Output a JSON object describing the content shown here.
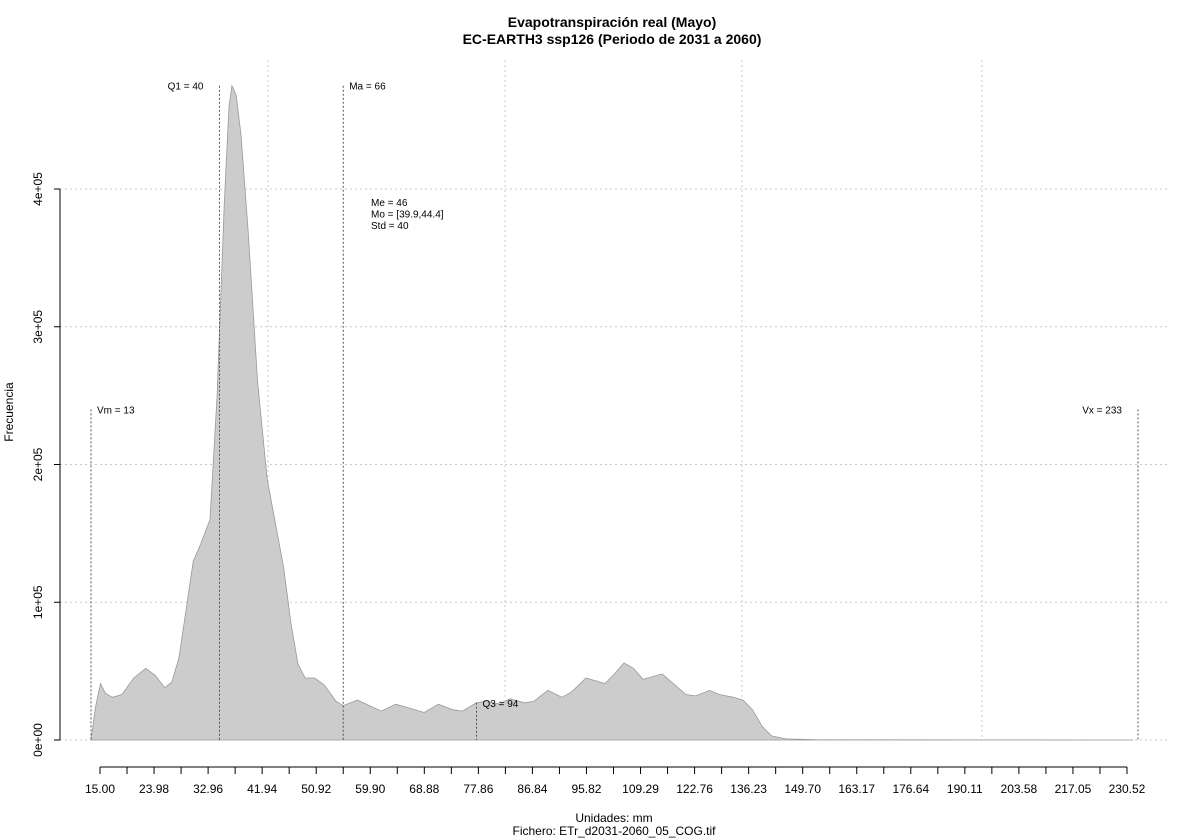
{
  "chart_data": {
    "type": "area",
    "title": "Evapotranspiración real (Mayo)",
    "subtitle": "EC-EARTH3 ssp126 (Periodo de 2031 a 2060)",
    "xlabel": "Unidades: mm",
    "ylabel": "Frecuencia",
    "footer": "Fichero: ETr_d2031-2060_05_COG.tif",
    "xlim": [
      13,
      233
    ],
    "ylim": [
      0,
      480000
    ],
    "xticks": [
      "15.00",
      "23.98",
      "32.96",
      "41.94",
      "50.92",
      "59.90",
      "68.88",
      "77.86",
      "86.84",
      "95.82",
      "109.29",
      "122.76",
      "136.23",
      "149.70",
      "163.17",
      "176.64",
      "190.11",
      "203.58",
      "217.05",
      "230.52"
    ],
    "yticks": [
      {
        "value": 0,
        "label": "0e+00"
      },
      {
        "value": 100000,
        "label": "1e+05"
      },
      {
        "value": 200000,
        "label": "2e+05"
      },
      {
        "value": 300000,
        "label": "3e+05"
      },
      {
        "value": 400000,
        "label": "4e+05"
      }
    ],
    "grid": true,
    "fill_color": "#cccccc",
    "density": [
      [
        13.0,
        0
      ],
      [
        14.0,
        25000
      ],
      [
        15.0,
        41000
      ],
      [
        16.0,
        34000
      ],
      [
        17.5,
        31000
      ],
      [
        19.5,
        33000
      ],
      [
        22.0,
        45000
      ],
      [
        24.5,
        52000
      ],
      [
        26.5,
        47000
      ],
      [
        28.5,
        38000
      ],
      [
        30.0,
        42000
      ],
      [
        31.5,
        60000
      ],
      [
        33.0,
        95000
      ],
      [
        34.5,
        130000
      ],
      [
        36.0,
        142000
      ],
      [
        38.0,
        160000
      ],
      [
        39.5,
        250000
      ],
      [
        41.0,
        390000
      ],
      [
        42.0,
        460000
      ],
      [
        42.6,
        475000
      ],
      [
        43.5,
        468000
      ],
      [
        44.5,
        440000
      ],
      [
        46.0,
        370000
      ],
      [
        48.0,
        260000
      ],
      [
        50.0,
        190000
      ],
      [
        51.5,
        162000
      ],
      [
        53.5,
        125000
      ],
      [
        55.0,
        85000
      ],
      [
        56.5,
        55000
      ],
      [
        58.0,
        45000
      ],
      [
        60.0,
        45000
      ],
      [
        62.0,
        40000
      ],
      [
        64.5,
        28000
      ],
      [
        66.0,
        25000
      ],
      [
        69.0,
        29000
      ],
      [
        71.5,
        25000
      ],
      [
        74.0,
        21000
      ],
      [
        77.0,
        26000
      ],
      [
        80.0,
        23000
      ],
      [
        83.0,
        20000
      ],
      [
        86.0,
        26000
      ],
      [
        89.0,
        22000
      ],
      [
        91.0,
        21000
      ],
      [
        94.0,
        27000
      ],
      [
        96.0,
        28000
      ],
      [
        99.0,
        26000
      ],
      [
        101.0,
        30000
      ],
      [
        104.0,
        27000
      ],
      [
        106.0,
        28000
      ],
      [
        109.0,
        36000
      ],
      [
        112.0,
        31000
      ],
      [
        114.0,
        35000
      ],
      [
        117.0,
        45000
      ],
      [
        119.0,
        43000
      ],
      [
        121.0,
        41000
      ],
      [
        123.0,
        48000
      ],
      [
        125.0,
        56000
      ],
      [
        127.0,
        52000
      ],
      [
        129.0,
        44000
      ],
      [
        131.0,
        46000
      ],
      [
        133.0,
        48000
      ],
      [
        135.0,
        42000
      ],
      [
        138.0,
        33000
      ],
      [
        140.0,
        32000
      ],
      [
        143.0,
        36000
      ],
      [
        145.0,
        33000
      ],
      [
        148.0,
        31000
      ],
      [
        150.0,
        29000
      ],
      [
        152.0,
        22000
      ],
      [
        154.0,
        10000
      ],
      [
        156.0,
        3000
      ],
      [
        159.0,
        800
      ],
      [
        165.0,
        200
      ],
      [
        200.0,
        100
      ],
      [
        232.0,
        0
      ]
    ],
    "markers": [
      {
        "name": "Vm",
        "value": 13,
        "label": "Vm = 13",
        "height": 240000,
        "side": "right"
      },
      {
        "name": "Q1",
        "value": 40,
        "label": "Q1 = 40",
        "height": 475000,
        "side": "left"
      },
      {
        "name": "Ma",
        "value": 66,
        "label": "Ma = 66",
        "height": 475000,
        "side": "right"
      },
      {
        "name": "Q3",
        "value": 94,
        "label": "Q3 = 94",
        "height": 27000,
        "side": "right"
      },
      {
        "name": "Vx",
        "value": 233,
        "label": "Vx = 233",
        "height": 240000,
        "side": "left"
      }
    ],
    "stats": [
      "Me = 46",
      "Mo = [39.9,44.4]",
      "Std = 40"
    ]
  }
}
